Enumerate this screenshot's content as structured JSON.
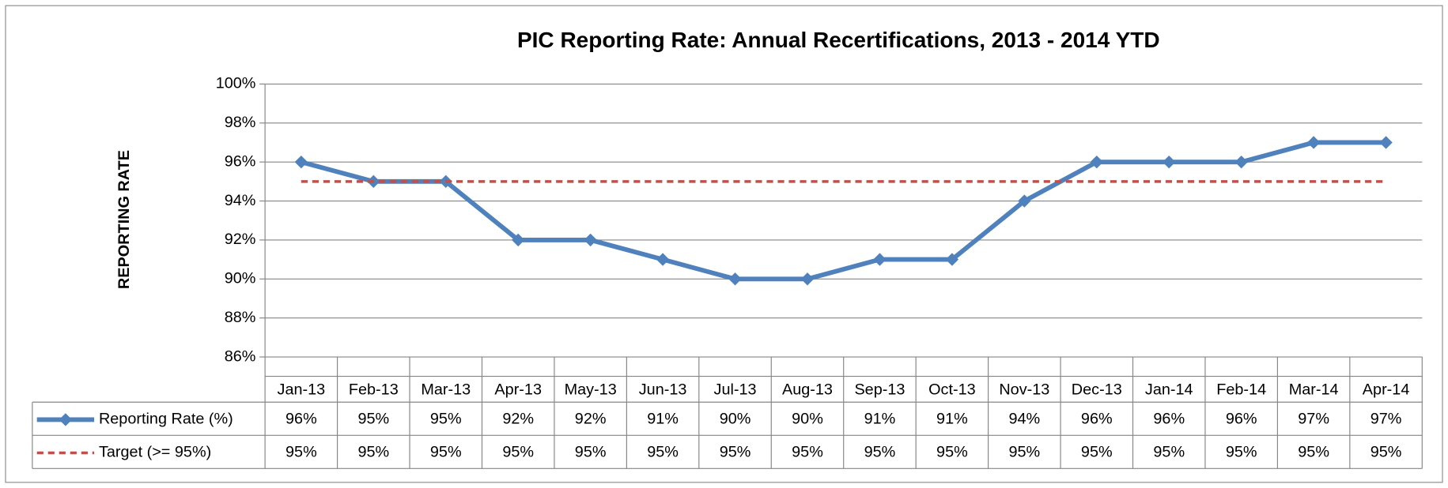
{
  "chart_data": {
    "type": "line",
    "title": "PIC Reporting Rate: Annual Recertifications, 2013 - 2014 YTD",
    "y_label": "REPORTING RATE",
    "categories": [
      "Jan-13",
      "Feb-13",
      "Mar-13",
      "Apr-13",
      "May-13",
      "Jun-13",
      "Jul-13",
      "Aug-13",
      "Sep-13",
      "Oct-13",
      "Nov-13",
      "Dec-13",
      "Jan-14",
      "Feb-14",
      "Mar-14",
      "Apr-14"
    ],
    "series": [
      {
        "name": "Reporting Rate (%)",
        "color": "#4f81bd",
        "dashed": false,
        "marker": "diamond",
        "values": [
          96,
          95,
          95,
          92,
          92,
          91,
          90,
          90,
          91,
          91,
          94,
          96,
          96,
          96,
          97,
          97
        ],
        "value_labels": [
          "96%",
          "95%",
          "95%",
          "92%",
          "92%",
          "91%",
          "90%",
          "90%",
          "91%",
          "91%",
          "94%",
          "96%",
          "96%",
          "96%",
          "97%",
          "97%"
        ]
      },
      {
        "name": "Target (>= 95%)",
        "color": "#c0504d",
        "dashed": true,
        "marker": null,
        "values": [
          95,
          95,
          95,
          95,
          95,
          95,
          95,
          95,
          95,
          95,
          95,
          95,
          95,
          95,
          95,
          95
        ],
        "value_labels": [
          "95%",
          "95%",
          "95%",
          "95%",
          "95%",
          "95%",
          "95%",
          "95%",
          "95%",
          "95%",
          "95%",
          "95%",
          "95%",
          "95%",
          "95%",
          "95%"
        ]
      }
    ],
    "ylim": [
      86,
      100
    ],
    "yticks": [
      {
        "value": 86,
        "label": "86%"
      },
      {
        "value": 88,
        "label": "88%"
      },
      {
        "value": 90,
        "label": "90%"
      },
      {
        "value": 92,
        "label": "92%"
      },
      {
        "value": 94,
        "label": "94%"
      },
      {
        "value": 96,
        "label": "96%"
      },
      {
        "value": 98,
        "label": "98%"
      },
      {
        "value": 100,
        "label": "100%"
      }
    ],
    "grid": true,
    "data_table": true
  }
}
